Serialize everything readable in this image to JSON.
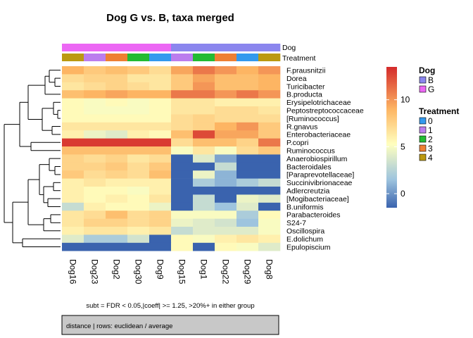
{
  "chart_data": {
    "type": "heatmap",
    "title": "Dog G vs. B, taxa merged",
    "subtitle": "subt = FDR < 0.05,|coeff| >= 1.25, >20%+ in either group",
    "footer": "distance | rows: euclidean / average",
    "columns": [
      "Dog16",
      "Dog23",
      "Dog2",
      "Dog30",
      "Dog9",
      "Dog15",
      "Dog1",
      "Dog22",
      "Dog29",
      "Dog8"
    ],
    "rows": [
      "F.prausnitzii",
      "Dorea",
      "Turicibacter",
      "B.producta",
      "Erysipelotrichaceae",
      "Peptostreptococcaceae",
      "[Ruminococcus]",
      "R.gnavus",
      "Enterobacteriaceae",
      "P.copri",
      "Ruminococcus",
      "Anaerobiospirillum",
      "Bacteroidales",
      "[Paraprevotellaceae]",
      "Succinivibrionaceae",
      "Adlercreutzia",
      "[Mogibacteriaceae]",
      "B.uniformis",
      "Parabacteroides",
      "S24-7",
      "Oscillospira",
      "E.dolichum",
      "Epulopiscium"
    ],
    "values": [
      [
        9,
        8,
        8.5,
        8,
        7,
        9.5,
        11,
        10,
        9,
        10
      ],
      [
        7,
        7.5,
        7.5,
        6.5,
        6.5,
        8,
        9.5,
        8.5,
        8.5,
        9
      ],
      [
        6.5,
        7,
        7.5,
        7,
        6.5,
        8,
        10,
        8.5,
        8.5,
        9
      ],
      [
        8.5,
        9,
        9.5,
        9,
        9,
        11,
        11,
        10,
        11,
        10
      ],
      [
        5.5,
        5,
        5.5,
        5,
        5.5,
        6.5,
        6.5,
        6,
        6,
        6
      ],
      [
        5.5,
        5,
        5,
        5,
        5.5,
        6.5,
        6.5,
        7,
        7,
        6.5
      ],
      [
        5.5,
        5.5,
        5.5,
        5.5,
        5.5,
        7,
        7.5,
        7,
        7,
        7
      ],
      [
        6.5,
        6.5,
        6.5,
        6.5,
        6.5,
        7,
        7.5,
        9,
        10,
        8
      ],
      [
        6,
        4.5,
        4,
        6,
        5.5,
        8.5,
        12.5,
        9.5,
        9.5,
        8
      ],
      [
        13,
        13,
        13,
        13,
        13,
        7,
        8.5,
        8.5,
        7.5,
        11
      ],
      [
        8.5,
        8.5,
        8.5,
        8.5,
        8.5,
        5,
        6.5,
        5,
        7,
        8
      ],
      [
        7.5,
        7,
        7.5,
        6.5,
        7,
        -1.5,
        4,
        0.5,
        -1.5,
        -1.5
      ],
      [
        7.5,
        7.5,
        8,
        7,
        8,
        -1.5,
        -1.5,
        3,
        -1.5,
        -1.5
      ],
      [
        8,
        7,
        7.5,
        7,
        8.5,
        -1.5,
        4.5,
        1,
        -1.5,
        -1.5
      ],
      [
        6,
        6.5,
        6,
        6,
        6,
        -1.5,
        2,
        1,
        2,
        3
      ],
      [
        6,
        5.5,
        5.5,
        5,
        6,
        -1.5,
        -1.5,
        -1.5,
        -1.5,
        -1.5
      ],
      [
        6,
        5.5,
        6,
        5.5,
        6.5,
        -1.5,
        3,
        -1.5,
        4.5,
        4
      ],
      [
        3,
        6,
        5.5,
        5.5,
        4.5,
        -1.5,
        3,
        1.5,
        4,
        -1.5
      ],
      [
        6.5,
        7,
        8.5,
        7,
        7.5,
        5,
        5,
        5,
        2,
        5.5
      ],
      [
        6.5,
        7.5,
        7.5,
        7,
        7.5,
        4.5,
        4,
        3.5,
        1.5,
        5
      ],
      [
        6,
        6.5,
        6.5,
        6,
        6.5,
        3,
        4,
        4,
        4,
        5
      ],
      [
        4,
        2,
        2,
        3.5,
        -1.5,
        5.5,
        5,
        6,
        6.5,
        6
      ],
      [
        -1.5,
        -1.5,
        -1.5,
        -1.5,
        -1.5,
        5.5,
        -1.5,
        5.5,
        5,
        4
      ]
    ],
    "annotations": {
      "Dog": [
        "G",
        "G",
        "G",
        "G",
        "G",
        "B",
        "B",
        "B",
        "B",
        "B"
      ],
      "Treatment": [
        "4",
        "1",
        "3",
        "2",
        "0",
        "1",
        "2",
        "3",
        "0",
        "4"
      ]
    },
    "annotation_labels": [
      "Dog",
      "Treatment"
    ],
    "legend": {
      "Dog": {
        "title": "Dog",
        "items": [
          {
            "label": "B",
            "color": "#8B86EE"
          },
          {
            "label": "G",
            "color": "#EC67F4"
          }
        ]
      },
      "Treatment": {
        "title": "Treatment",
        "items": [
          {
            "label": "0",
            "color": "#3399EE"
          },
          {
            "label": "1",
            "color": "#BB7DEE"
          },
          {
            "label": "2",
            "color": "#22BB33"
          },
          {
            "label": "3",
            "color": "#EE7F33"
          },
          {
            "label": "4",
            "color": "#BB9911"
          }
        ]
      }
    },
    "colorbar": {
      "ticks": [
        0,
        5,
        10
      ],
      "range": [
        -1.5,
        13.5
      ]
    },
    "colors": {
      "low": "#3A63AE",
      "mid": "#FFFFBF",
      "high": "#D42B2B"
    },
    "dendrogram": "rows"
  }
}
